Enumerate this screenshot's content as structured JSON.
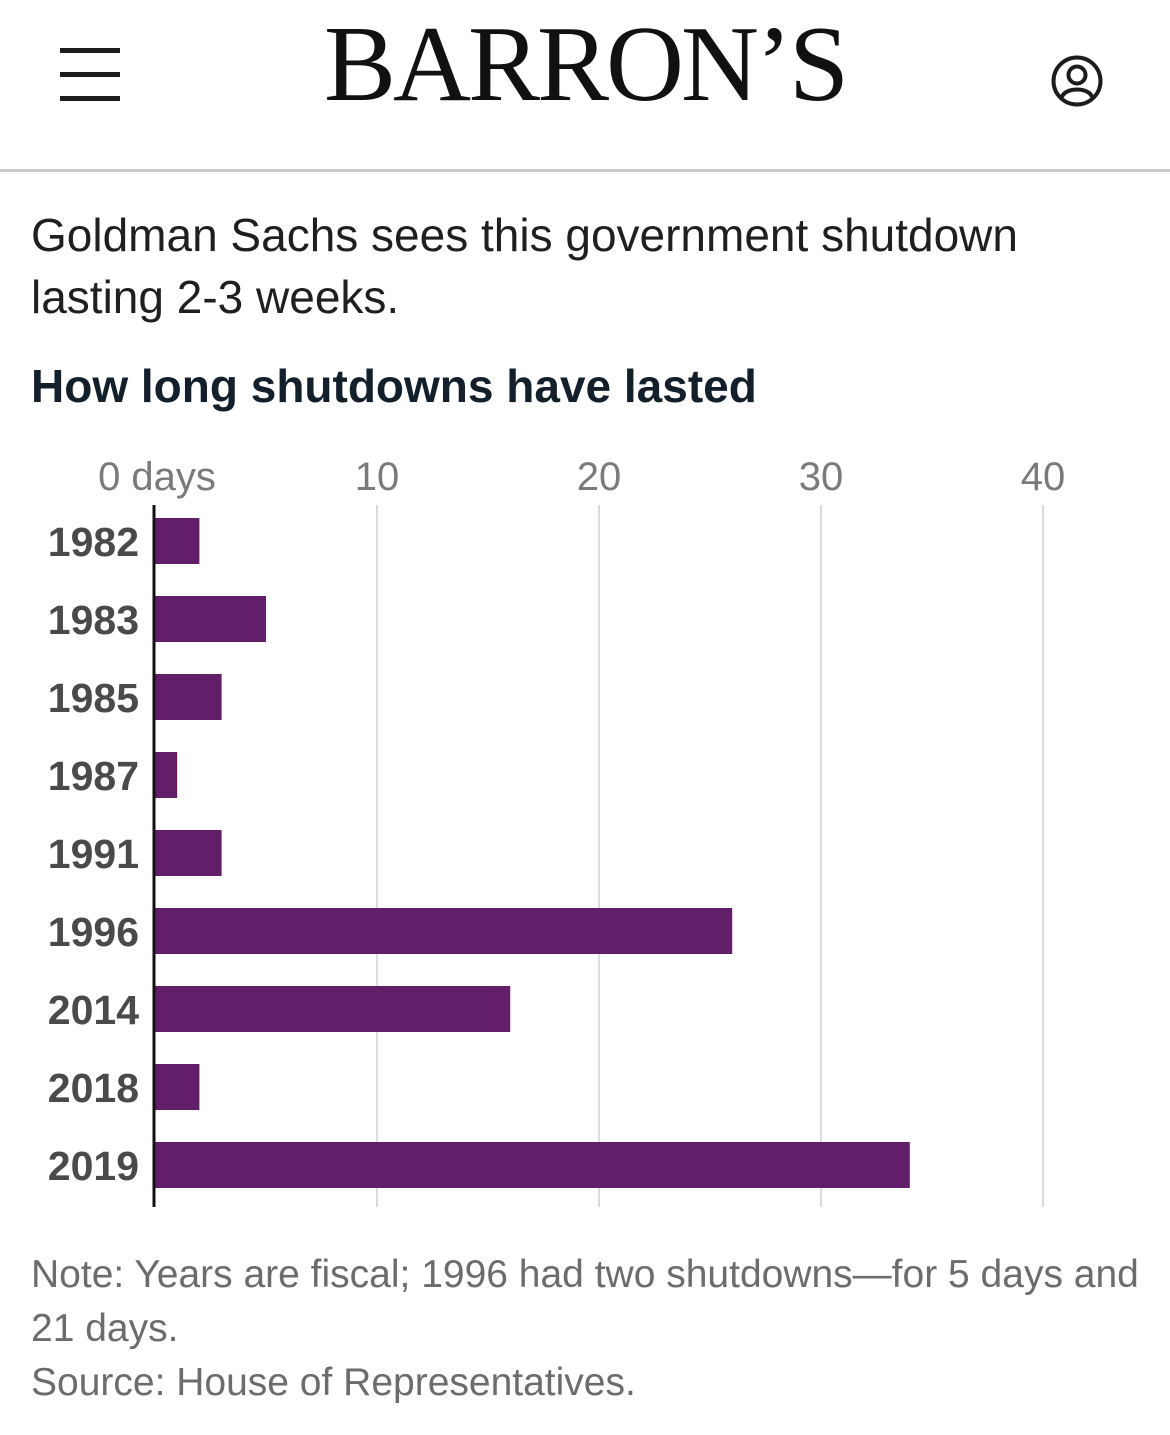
{
  "header": {
    "brand": "BARRON’S",
    "menu_icon": "hamburger-menu-icon",
    "account_icon": "user-account-icon"
  },
  "article": {
    "dek": "Goldman Sachs sees this government shutdown lasting 2-3 weeks."
  },
  "chart_data": {
    "type": "bar",
    "orientation": "horizontal",
    "title": "How long shutdowns have lasted",
    "categories": [
      "1982",
      "1983",
      "1985",
      "1987",
      "1991",
      "1996",
      "2014",
      "2018",
      "2019"
    ],
    "values": [
      2,
      5,
      3,
      1,
      3,
      26,
      16,
      2,
      34
    ],
    "x_ticks": [
      0,
      10,
      20,
      30,
      40
    ],
    "x_tick_labels": [
      "0 days",
      "10",
      "20",
      "30",
      "40"
    ],
    "xlim": [
      0,
      40
    ],
    "grid": true,
    "legend": "none",
    "bar_color": "#621e68",
    "gridline_color": "#dcdcdc",
    "note": "Note: Years are fiscal; 1996 had two shutdowns—for 5 days and 21 days.",
    "source": "Source: House of Representatives."
  }
}
